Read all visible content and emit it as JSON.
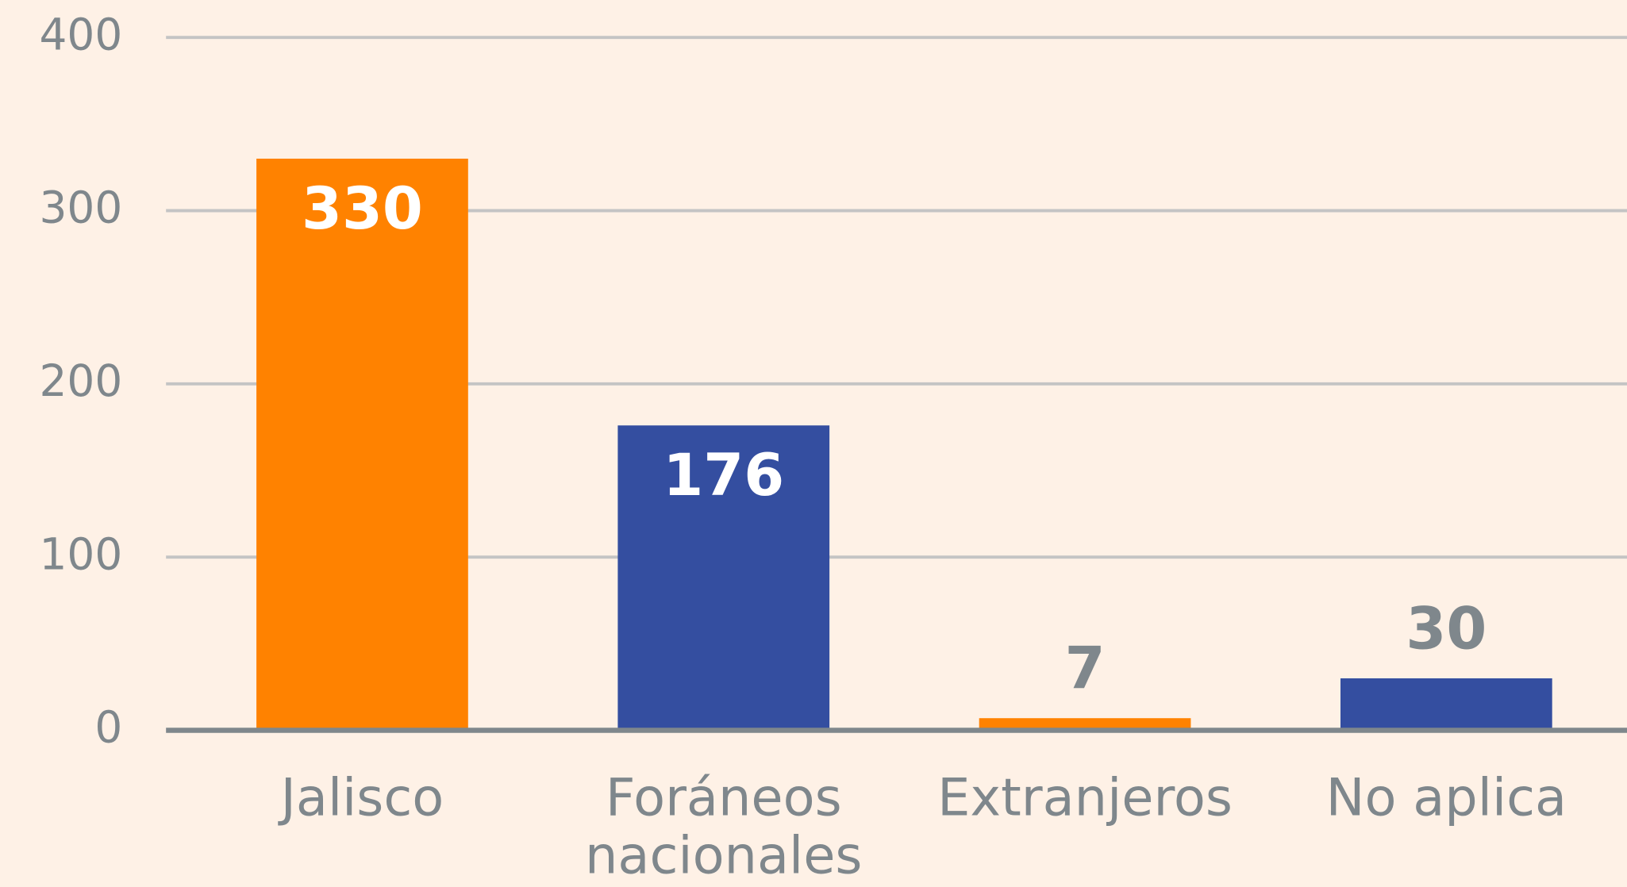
{
  "chart_data": {
    "type": "bar",
    "categories": [
      "Jalisco",
      "Foráneos nacionales",
      "Extranjeros",
      "No aplica"
    ],
    "values": [
      330,
      176,
      7,
      30
    ],
    "colors": [
      "#ff8200",
      "#344ea0",
      "#ff8200",
      "#344ea0"
    ],
    "ylim": [
      0,
      400
    ],
    "yticks": [
      0,
      100,
      200,
      300,
      400
    ],
    "grid": true
  }
}
